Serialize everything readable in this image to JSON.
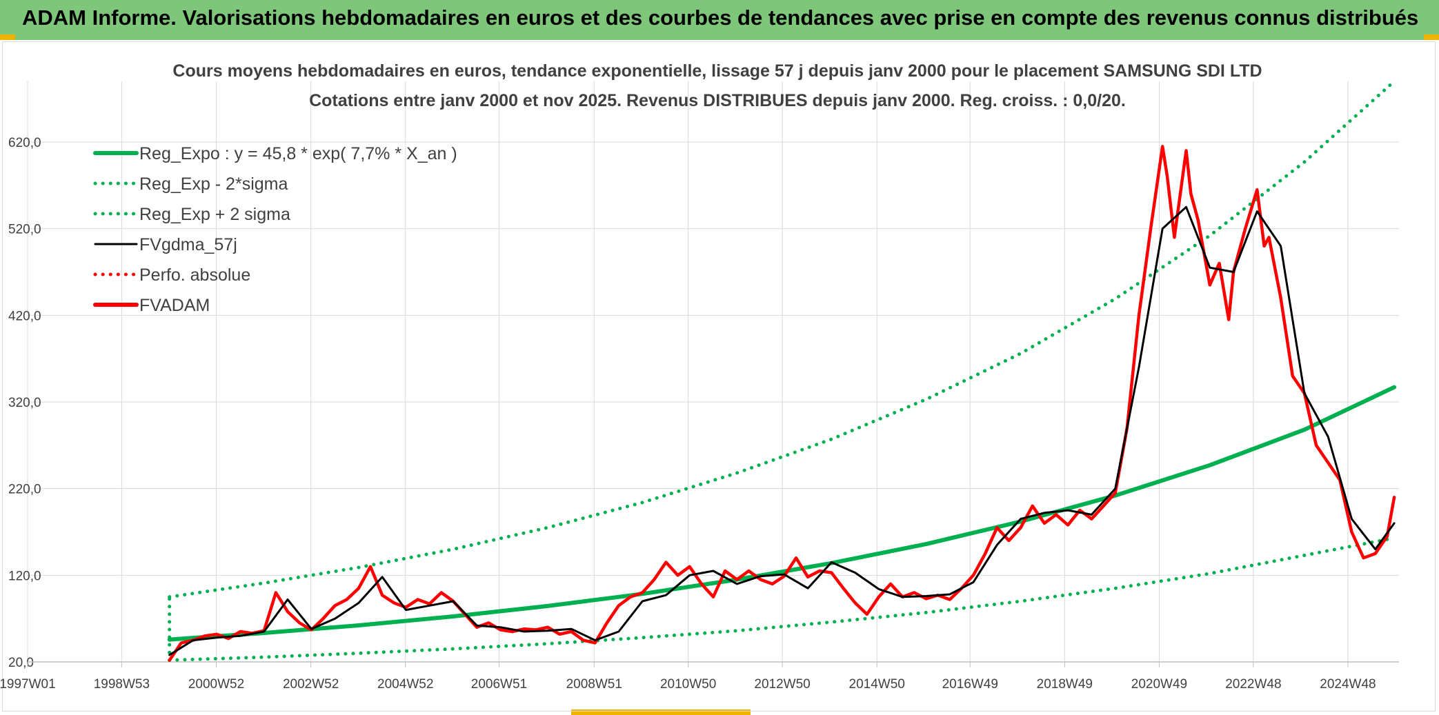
{
  "banner": {
    "title": "ADAM Informe. Valorisations hebdomadaires en euros et des courbes de tendances avec prise en compte des revenus connus distribués",
    "color": "#7dc67a"
  },
  "chart_data": {
    "type": "line",
    "title": "Cours moyens hebdomadaires en euros, tendance exponentielle, lissage 57 j depuis janv 2000 pour le placement SAMSUNG SDI LTD",
    "subtitle": "Cotations entre janv 2000 et nov 2025. Revenus DISTRIBUES depuis janv 2000. Reg. croiss. : 0,0/20.",
    "xlabel": "",
    "ylabel": "",
    "xlim": [
      1997.0,
      2026.0
    ],
    "ylim": [
      20,
      690
    ],
    "y_ticks": [
      20,
      120,
      220,
      320,
      420,
      520,
      620
    ],
    "y_tick_labels": [
      "20,0",
      "120,0",
      "220,0",
      "320,0",
      "420,0",
      "520,0",
      "620,0"
    ],
    "x_ticks": [
      1997.0,
      1998.99,
      2000.99,
      2002.99,
      2004.99,
      2006.97,
      2008.98,
      2010.97,
      2012.96,
      2014.96,
      2016.93,
      2018.93,
      2020.93,
      2022.92,
      2024.92
    ],
    "x_tick_labels": [
      "1997W01",
      "1998W53",
      "2000W52",
      "2002W52",
      "2004W52",
      "2006W51",
      "2008W51",
      "2010W50",
      "2012W50",
      "2014W50",
      "2016W49",
      "2018W49",
      "2020W49",
      "2022W48",
      "2024W48"
    ],
    "grid": true,
    "legend_position": "top-left",
    "colors": {
      "green": "#00b050",
      "red": "#ff0000",
      "black": "#000000",
      "grid": "#d9d9d9",
      "axis": "#bfbfbf"
    },
    "series": [
      {
        "name": "Reg_Expo : y = 45,8 * exp( 7,7% *  X_an )",
        "style": "solid-thick",
        "color": "#00b050",
        "x": [
          2000.0,
          2002.0,
          2004.0,
          2006.0,
          2008.0,
          2010.0,
          2012.0,
          2014.0,
          2016.0,
          2018.0,
          2020.0,
          2022.0,
          2024.0,
          2025.9
        ],
        "y": [
          45.8,
          53.4,
          62.2,
          72.5,
          84.5,
          98.5,
          115,
          134,
          156,
          182,
          212,
          247,
          288,
          337
        ]
      },
      {
        "name": "Reg_Exp - 2*sigma",
        "style": "dotted",
        "color": "#00b050",
        "x": [
          2000.0,
          2002.0,
          2004.0,
          2006.0,
          2008.0,
          2010.0,
          2012.0,
          2014.0,
          2016.0,
          2018.0,
          2020.0,
          2022.0,
          2024.0,
          2025.9
        ],
        "y": [
          22,
          25.5,
          30,
          35,
          41,
          48,
          56,
          66,
          77,
          90,
          105,
          122,
          143,
          163
        ]
      },
      {
        "name": "Reg_Exp + 2 sigma",
        "style": "dotted",
        "color": "#00b050",
        "x": [
          2000.0,
          2002.0,
          2004.0,
          2006.0,
          2008.0,
          2010.0,
          2012.0,
          2014.0,
          2016.0,
          2018.0,
          2020.0,
          2022.0,
          2024.0,
          2025.9
        ],
        "y": [
          95,
          111,
          129,
          150,
          175,
          204,
          238,
          277,
          323,
          376,
          439,
          512,
          597,
          690
        ],
        "start": {
          "x": 2000.0,
          "y": 95
        }
      },
      {
        "name": "FVgdma_57j",
        "style": "solid",
        "color": "#000000",
        "x": [
          2000.0,
          2000.5,
          2001.0,
          2001.5,
          2002.0,
          2002.5,
          2003.0,
          2003.5,
          2004.0,
          2004.5,
          2005.0,
          2005.5,
          2006.0,
          2006.5,
          2007.0,
          2007.5,
          2008.0,
          2008.5,
          2009.0,
          2009.5,
          2010.0,
          2010.5,
          2011.0,
          2011.5,
          2012.0,
          2012.5,
          2013.0,
          2013.5,
          2014.0,
          2014.5,
          2015.0,
          2015.5,
          2016.0,
          2016.5,
          2017.0,
          2017.5,
          2018.0,
          2018.5,
          2019.0,
          2019.5,
          2020.0,
          2020.5,
          2021.0,
          2021.5,
          2022.0,
          2022.5,
          2023.0,
          2023.5,
          2024.0,
          2024.5,
          2025.0,
          2025.5,
          2025.9
        ],
        "y": [
          28,
          45,
          48,
          50,
          55,
          92,
          58,
          70,
          88,
          118,
          80,
          85,
          90,
          62,
          60,
          55,
          56,
          58,
          45,
          55,
          90,
          97,
          120,
          125,
          110,
          119,
          121,
          105,
          135,
          123,
          104,
          95,
          96,
          98,
          112,
          155,
          185,
          192,
          195,
          190,
          220,
          360,
          520,
          545,
          475,
          470,
          540,
          500,
          330,
          280,
          185,
          150,
          180
        ]
      },
      {
        "name": "Perfo. absolue",
        "style": "dotted",
        "color": "#ff0000",
        "x": [],
        "y": []
      },
      {
        "name": "FVADAM",
        "style": "solid-thick",
        "color": "#ff0000",
        "x": [
          2000.0,
          2000.25,
          2000.5,
          2000.75,
          2001.0,
          2001.25,
          2001.5,
          2001.75,
          2002.0,
          2002.25,
          2002.5,
          2002.75,
          2003.0,
          2003.25,
          2003.5,
          2003.75,
          2004.0,
          2004.25,
          2004.5,
          2004.75,
          2005.0,
          2005.25,
          2005.5,
          2005.75,
          2006.0,
          2006.25,
          2006.5,
          2006.75,
          2007.0,
          2007.25,
          2007.5,
          2007.75,
          2008.0,
          2008.25,
          2008.5,
          2008.75,
          2009.0,
          2009.25,
          2009.5,
          2009.75,
          2010.0,
          2010.25,
          2010.5,
          2010.75,
          2011.0,
          2011.25,
          2011.5,
          2011.75,
          2012.0,
          2012.25,
          2012.5,
          2012.75,
          2013.0,
          2013.25,
          2013.5,
          2013.75,
          2014.0,
          2014.25,
          2014.5,
          2014.75,
          2015.0,
          2015.25,
          2015.5,
          2015.75,
          2016.0,
          2016.25,
          2016.5,
          2016.75,
          2017.0,
          2017.25,
          2017.5,
          2017.75,
          2018.0,
          2018.25,
          2018.5,
          2018.75,
          2019.0,
          2019.25,
          2019.5,
          2019.75,
          2020.0,
          2020.25,
          2020.5,
          2020.75,
          2021.0,
          2021.1,
          2021.25,
          2021.5,
          2021.6,
          2021.75,
          2022.0,
          2022.2,
          2022.4,
          2022.5,
          2022.75,
          2023.0,
          2023.15,
          2023.25,
          2023.5,
          2023.75,
          2024.0,
          2024.25,
          2024.5,
          2024.75,
          2025.0,
          2025.25,
          2025.5,
          2025.75,
          2025.9
        ],
        "y": [
          22,
          42,
          45,
          50,
          52,
          47,
          55,
          53,
          56,
          100,
          78,
          65,
          57,
          70,
          85,
          92,
          105,
          130,
          97,
          88,
          83,
          92,
          87,
          100,
          90,
          75,
          60,
          65,
          57,
          55,
          58,
          57,
          60,
          52,
          55,
          45,
          42,
          65,
          85,
          95,
          100,
          115,
          135,
          120,
          130,
          110,
          95,
          125,
          115,
          125,
          115,
          110,
          119,
          140,
          118,
          125,
          123,
          105,
          88,
          75,
          95,
          110,
          95,
          100,
          93,
          97,
          92,
          105,
          120,
          145,
          175,
          160,
          175,
          200,
          180,
          190,
          178,
          195,
          185,
          200,
          215,
          290,
          420,
          520,
          615,
          580,
          510,
          610,
          560,
          530,
          455,
          480,
          415,
          470,
          520,
          565,
          500,
          510,
          440,
          350,
          330,
          270,
          250,
          230,
          170,
          140,
          145,
          165,
          210
        ]
      }
    ]
  }
}
